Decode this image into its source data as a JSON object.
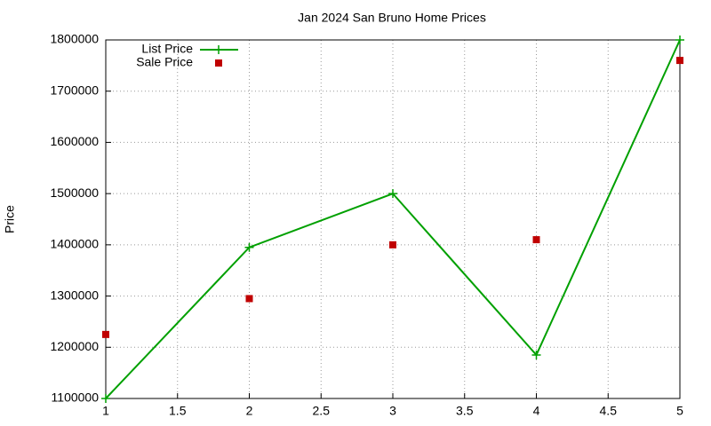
{
  "chart_data": {
    "type": "line",
    "title": "Jan 2024 San Bruno Home Prices",
    "y_label": "Price",
    "x": [
      1,
      2,
      3,
      4,
      5
    ],
    "series": [
      {
        "name": "List Price",
        "color": "#00a000",
        "mode": "linespoints",
        "values": [
          1100000,
          1395000,
          1500000,
          1185000,
          1800000
        ]
      },
      {
        "name": "Sale Price",
        "color": "#c00000",
        "mode": "points",
        "values": [
          1225000,
          1295000,
          1400000,
          1410000,
          1760000
        ]
      }
    ],
    "xlim": [
      1,
      5
    ],
    "xticks": [
      1,
      1.5,
      2,
      2.5,
      3,
      3.5,
      4,
      4.5,
      5
    ],
    "ylim": [
      1100000,
      1800000
    ],
    "yticks": [
      1100000,
      1200000,
      1300000,
      1400000,
      1500000,
      1600000,
      1700000,
      1800000
    ],
    "grid": true,
    "legend": "top-left"
  }
}
